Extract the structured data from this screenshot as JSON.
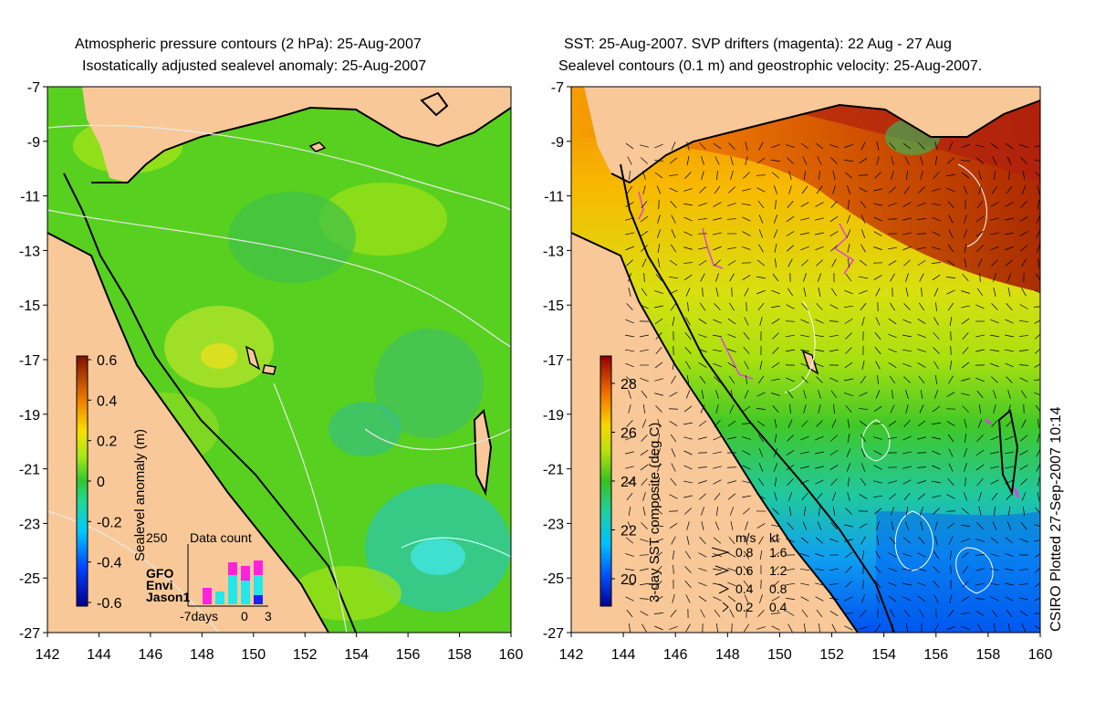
{
  "left_panel": {
    "title_line1": "Atmospheric pressure contours (2 hPa): 25-Aug-2007",
    "title_line2": "Isostatically adjusted sealevel anomaly: 25-Aug-2007",
    "colorbar_label": "Sealevel anomaly (m)",
    "colorbar_ticks": [
      "0.6",
      "0.4",
      "0.2",
      "0",
      "-0.2",
      "-0.4",
      "-0.6"
    ],
    "data_count": {
      "title": "Data count",
      "max_label": "250",
      "legend": [
        "GFO",
        "Envi",
        "Jason1"
      ],
      "legend_colors": [
        "#ff22dd",
        "#22e8e8",
        "#1a22ff"
      ],
      "x_labels": [
        "-7days",
        "0",
        "3"
      ]
    }
  },
  "right_panel": {
    "title_line1": "SST: 25-Aug-2007. SVP drifters (magenta): 22 Aug - 27 Aug",
    "title_line2": "Sealevel contours (0.1 m) and geostrophic velocity: 25-Aug-2007.",
    "colorbar_label": "3-day SST composite (deg C)",
    "colorbar_ticks": [
      "28",
      "26",
      "24",
      "22",
      "20"
    ],
    "velocity_legend": {
      "header_ms": "m/s",
      "header_kt": "kt",
      "rows": [
        {
          "ms": "0.8",
          "kt": "1.6"
        },
        {
          "ms": "0.6",
          "kt": "1.2"
        },
        {
          "ms": "0.4",
          "kt": "0.8"
        },
        {
          "ms": "0.2",
          "kt": "0.4"
        }
      ]
    }
  },
  "axes": {
    "lat_labels": [
      "-7",
      "-9",
      "-11",
      "-13",
      "-15",
      "-17",
      "-19",
      "-21",
      "-23",
      "-25",
      "-27"
    ],
    "lon_labels": [
      "142",
      "144",
      "146",
      "148",
      "150",
      "152",
      "154",
      "156",
      "158",
      "160"
    ]
  },
  "credit": "CSIRO Plotted 27-Sep-2007 10:14",
  "colors": {
    "land": "#f8c898",
    "ocean_green": "#58d020",
    "drifter": "#e040e0"
  }
}
